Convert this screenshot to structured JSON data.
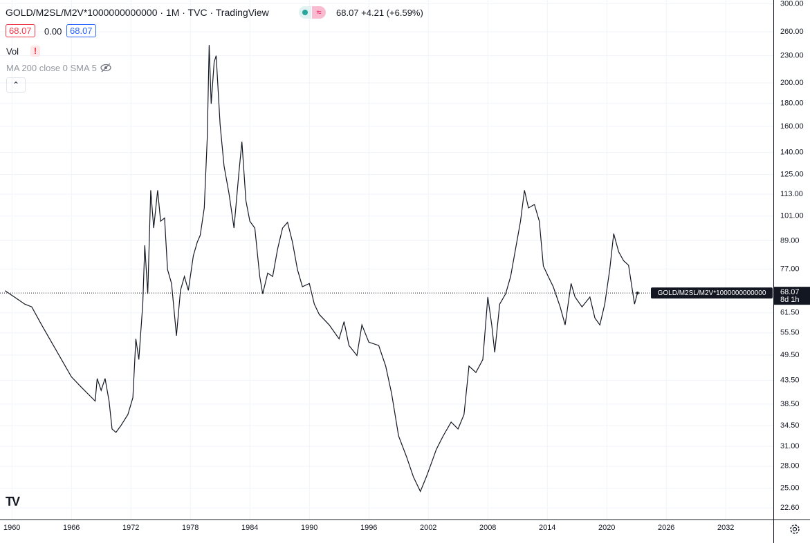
{
  "header": {
    "symbol": "GOLD/M2SL/M2V*1000000000000 · 1M · TVC · TradingView",
    "last": "68.07",
    "change": "+4.21",
    "change_pct": "(+6.59%)",
    "open_box": "68.07",
    "spread": "0.00",
    "close_box": "68.07",
    "vol": "Vol",
    "vol_warning": "!",
    "ma": "MA 200 close 0 SMA 5"
  },
  "price_label": {
    "name": "GOLD/M2SL/M2V*1000000000000",
    "value": "68.07",
    "countdown": "8d 1h"
  },
  "logo": "TV",
  "chart_data": {
    "type": "line",
    "color": "#131722",
    "log_scale": true,
    "grid": true,
    "xlim": [
      1958.8,
      2036.8
    ],
    "ylim": [
      21.3,
      306
    ],
    "xticks": [
      1960,
      1966,
      1972,
      1978,
      1984,
      1990,
      1996,
      2002,
      2008,
      2014,
      2020,
      2026,
      2032
    ],
    "yticks": [
      {
        "value": 300,
        "label": "300.00"
      },
      {
        "value": 260,
        "label": "260.00"
      },
      {
        "value": 230,
        "label": "230.00"
      },
      {
        "value": 200,
        "label": "200.00"
      },
      {
        "value": 180,
        "label": "180.00"
      },
      {
        "value": 160,
        "label": "160.00"
      },
      {
        "value": 140,
        "label": "140.00"
      },
      {
        "value": 125,
        "label": "125.00"
      },
      {
        "value": 113,
        "label": "113.00"
      },
      {
        "value": 101,
        "label": "101.00"
      },
      {
        "value": 89,
        "label": "89.00"
      },
      {
        "value": 77,
        "label": "77.00"
      },
      {
        "value": 61.5,
        "label": "61.50"
      },
      {
        "value": 55.5,
        "label": "55.50"
      },
      {
        "value": 49.5,
        "label": "49.50"
      },
      {
        "value": 43.5,
        "label": "43.50"
      },
      {
        "value": 38.5,
        "label": "38.50"
      },
      {
        "value": 34.5,
        "label": "34.50"
      },
      {
        "value": 31,
        "label": "31.00"
      },
      {
        "value": 28,
        "label": "28.00"
      },
      {
        "value": 25,
        "label": "25.00"
      },
      {
        "value": 22.6,
        "label": "22.60"
      }
    ],
    "x": [
      1959.3,
      1960.5,
      1961.3,
      1962,
      1963,
      1964,
      1965,
      1966,
      1967,
      1968.4,
      1968.6,
      1969,
      1969.4,
      1969.8,
      1970.1,
      1970.5,
      1971,
      1971.7,
      1972.2,
      1972.5,
      1972.8,
      1973.2,
      1973.4,
      1973.7,
      1974.0,
      1974.3,
      1974.7,
      1975,
      1975.4,
      1975.7,
      1976.1,
      1976.6,
      1977,
      1977.4,
      1977.8,
      1978.3,
      1978.7,
      1979.0,
      1979.4,
      1979.7,
      1979.9,
      1980.1,
      1980.4,
      1980.6,
      1981.0,
      1981.4,
      1981.9,
      1982.4,
      1982.9,
      1983.2,
      1983.6,
      1984.0,
      1984.5,
      1985.0,
      1985.3,
      1985.8,
      1986.3,
      1986.8,
      1987.3,
      1987.8,
      1988.3,
      1988.8,
      1989.3,
      1990.0,
      1990.5,
      1991,
      1992,
      1993,
      1993.5,
      1994,
      1994.8,
      1995.3,
      1996,
      1997,
      1997.7,
      1998.3,
      1999,
      1999.8,
      2000.5,
      2001.2,
      2001.8,
      2002.3,
      2002.8,
      2003.5,
      2004.3,
      2005,
      2005.6,
      2006.1,
      2006.8,
      2007.5,
      2008.0,
      2008.4,
      2008.7,
      2009.2,
      2009.8,
      2010.3,
      2010.8,
      2011.3,
      2011.7,
      2012.1,
      2012.7,
      2013.2,
      2013.6,
      2014.1,
      2014.6,
      2015.3,
      2015.8,
      2016.4,
      2016.8,
      2017.5,
      2018.3,
      2018.8,
      2019.3,
      2019.8,
      2020.3,
      2020.7,
      2021.2,
      2021.7,
      2022.2,
      2022.8,
      2023.1
    ],
    "values": [
      68.9,
      66.1,
      64.3,
      63.4,
      57.8,
      52.9,
      48.4,
      44.3,
      42.0,
      39.1,
      43.9,
      41.3,
      43.9,
      39.1,
      33.9,
      33.3,
      34.5,
      36.5,
      39.8,
      53.8,
      48.4,
      64.3,
      86.9,
      67.8,
      115.3,
      95.0,
      115.3,
      98.4,
      100,
      76.8,
      71.5,
      54.7,
      69,
      74.1,
      69,
      82.4,
      88.4,
      91.6,
      105.3,
      150.5,
      242.9,
      179.7,
      222.4,
      230,
      161.5,
      130.6,
      113.3,
      95,
      126.3,
      148,
      109.4,
      98.4,
      95,
      74.1,
      67.8,
      75.4,
      74.1,
      85.3,
      95,
      97.8,
      88.4,
      76.8,
      70.3,
      71.5,
      64.3,
      61,
      57.8,
      53.8,
      58.8,
      52,
      49.4,
      57.8,
      52.9,
      52,
      46.8,
      40.6,
      32.7,
      29.4,
      26.5,
      24.6,
      26.5,
      28.4,
      30.5,
      32.7,
      35.1,
      33.9,
      36.5,
      46.8,
      45.3,
      48.4,
      66.7,
      57.8,
      50.2,
      64.3,
      67.8,
      74.1,
      85.3,
      98.4,
      115.3,
      105.3,
      107.2,
      98.4,
      78.2,
      74.1,
      70.3,
      63.4,
      57.8,
      71.5,
      66.7,
      63.4,
      66.7,
      59.9,
      57.8,
      64.3,
      76.8,
      92.3,
      84.1,
      80.3,
      78.5,
      64.3,
      68.07
    ]
  }
}
